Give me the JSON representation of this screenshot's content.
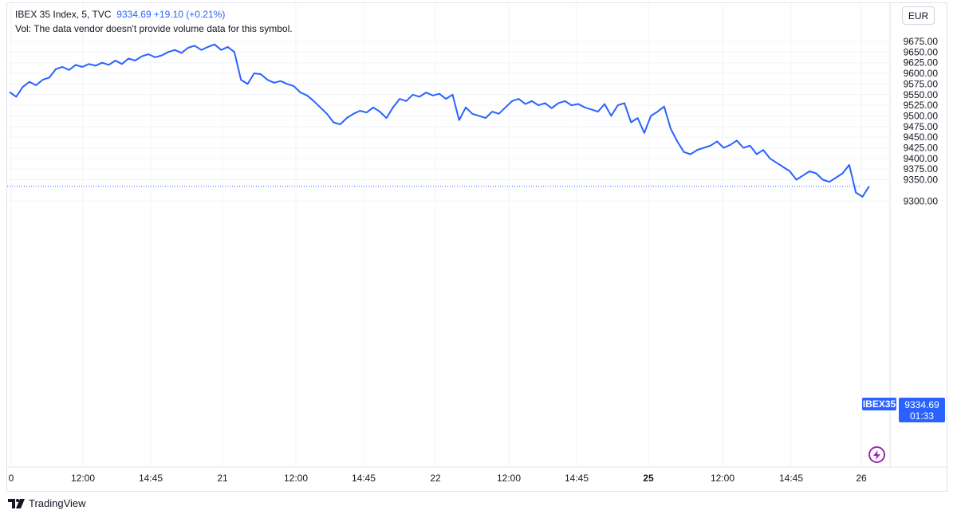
{
  "legend": {
    "title": "IBEX 35 Index, 5, TVC",
    "last": "9334.69",
    "change": "+19.10 (+0.21%)",
    "volume_note": "Vol: The data vendor doesn't provide volume data for this symbol."
  },
  "currency": "EUR",
  "symbol_tag": "IBEX35",
  "price_tag": {
    "price": "9334.69",
    "countdown": "01:33"
  },
  "branding": {
    "logo_text": "TradingView"
  },
  "colors": {
    "line": "#2962ff",
    "accent": "#2962ff",
    "alert": "#9c27b0",
    "grid": "#f0f3fa",
    "axis_text": "#131722"
  },
  "chart_data": {
    "type": "line",
    "series": [
      {
        "values": [
          9556,
          9545,
          9568,
          9580,
          9572,
          9585,
          9590,
          9610,
          9615,
          9608,
          9620,
          9615,
          9622,
          9618,
          9625,
          9620,
          9630,
          9622,
          9635,
          9630,
          9640,
          9645,
          9638,
          9642,
          9650,
          9655,
          9648,
          9660,
          9665,
          9655,
          9662,
          9668,
          9655,
          9662,
          9650,
          9585,
          9575,
          9600,
          9598,
          9585,
          9578,
          9582,
          9575,
          9570,
          9555,
          9548,
          9535,
          9520,
          9505,
          9485,
          9480,
          9495,
          9505,
          9512,
          9508,
          9520,
          9510,
          9495,
          9520,
          9540,
          9535,
          9550,
          9545,
          9555,
          9548,
          9552,
          9540,
          9550,
          9490,
          9520,
          9505,
          9500,
          9495,
          9510,
          9505,
          9520,
          9535,
          9540,
          9528,
          9535,
          9525,
          9530,
          9518,
          9530,
          9535,
          9525,
          9528,
          9520,
          9515,
          9510,
          9528,
          9500,
          9525,
          9530,
          9485,
          9495,
          9460,
          9500,
          9510,
          9522,
          9470,
          9440,
          9415,
          9410,
          9420,
          9425,
          9430,
          9440,
          9425,
          9432,
          9442,
          9425,
          9430,
          9410,
          9420,
          9400,
          9390,
          9380,
          9370,
          9350,
          9360,
          9370,
          9365,
          9350,
          9345,
          9355,
          9365,
          9385,
          9320,
          9310,
          9334.69
        ],
        "x_end_fraction": 0.978
      }
    ],
    "x_ticks": [
      "0",
      "12:00",
      "14:45",
      "21",
      "12:00",
      "14:45",
      "22",
      "12:00",
      "14:45",
      "25",
      "12:00",
      "14:45",
      "26"
    ],
    "x_ticks_bold": [
      "25"
    ],
    "y_ticks": [
      "9675.00",
      "9650.00",
      "9625.00",
      "9600.00",
      "9575.00",
      "9550.00",
      "9525.00",
      "9500.00",
      "9475.00",
      "9450.00",
      "9425.00",
      "9400.00",
      "9375.00",
      "9350.00",
      "9300.00"
    ],
    "y_tick_values": [
      9675,
      9650,
      9625,
      9600,
      9575,
      9550,
      9525,
      9500,
      9475,
      9450,
      9425,
      9400,
      9375,
      9350,
      9300
    ],
    "ylim": [
      9275,
      9695
    ],
    "last_value": 9334.69,
    "grid": true
  }
}
